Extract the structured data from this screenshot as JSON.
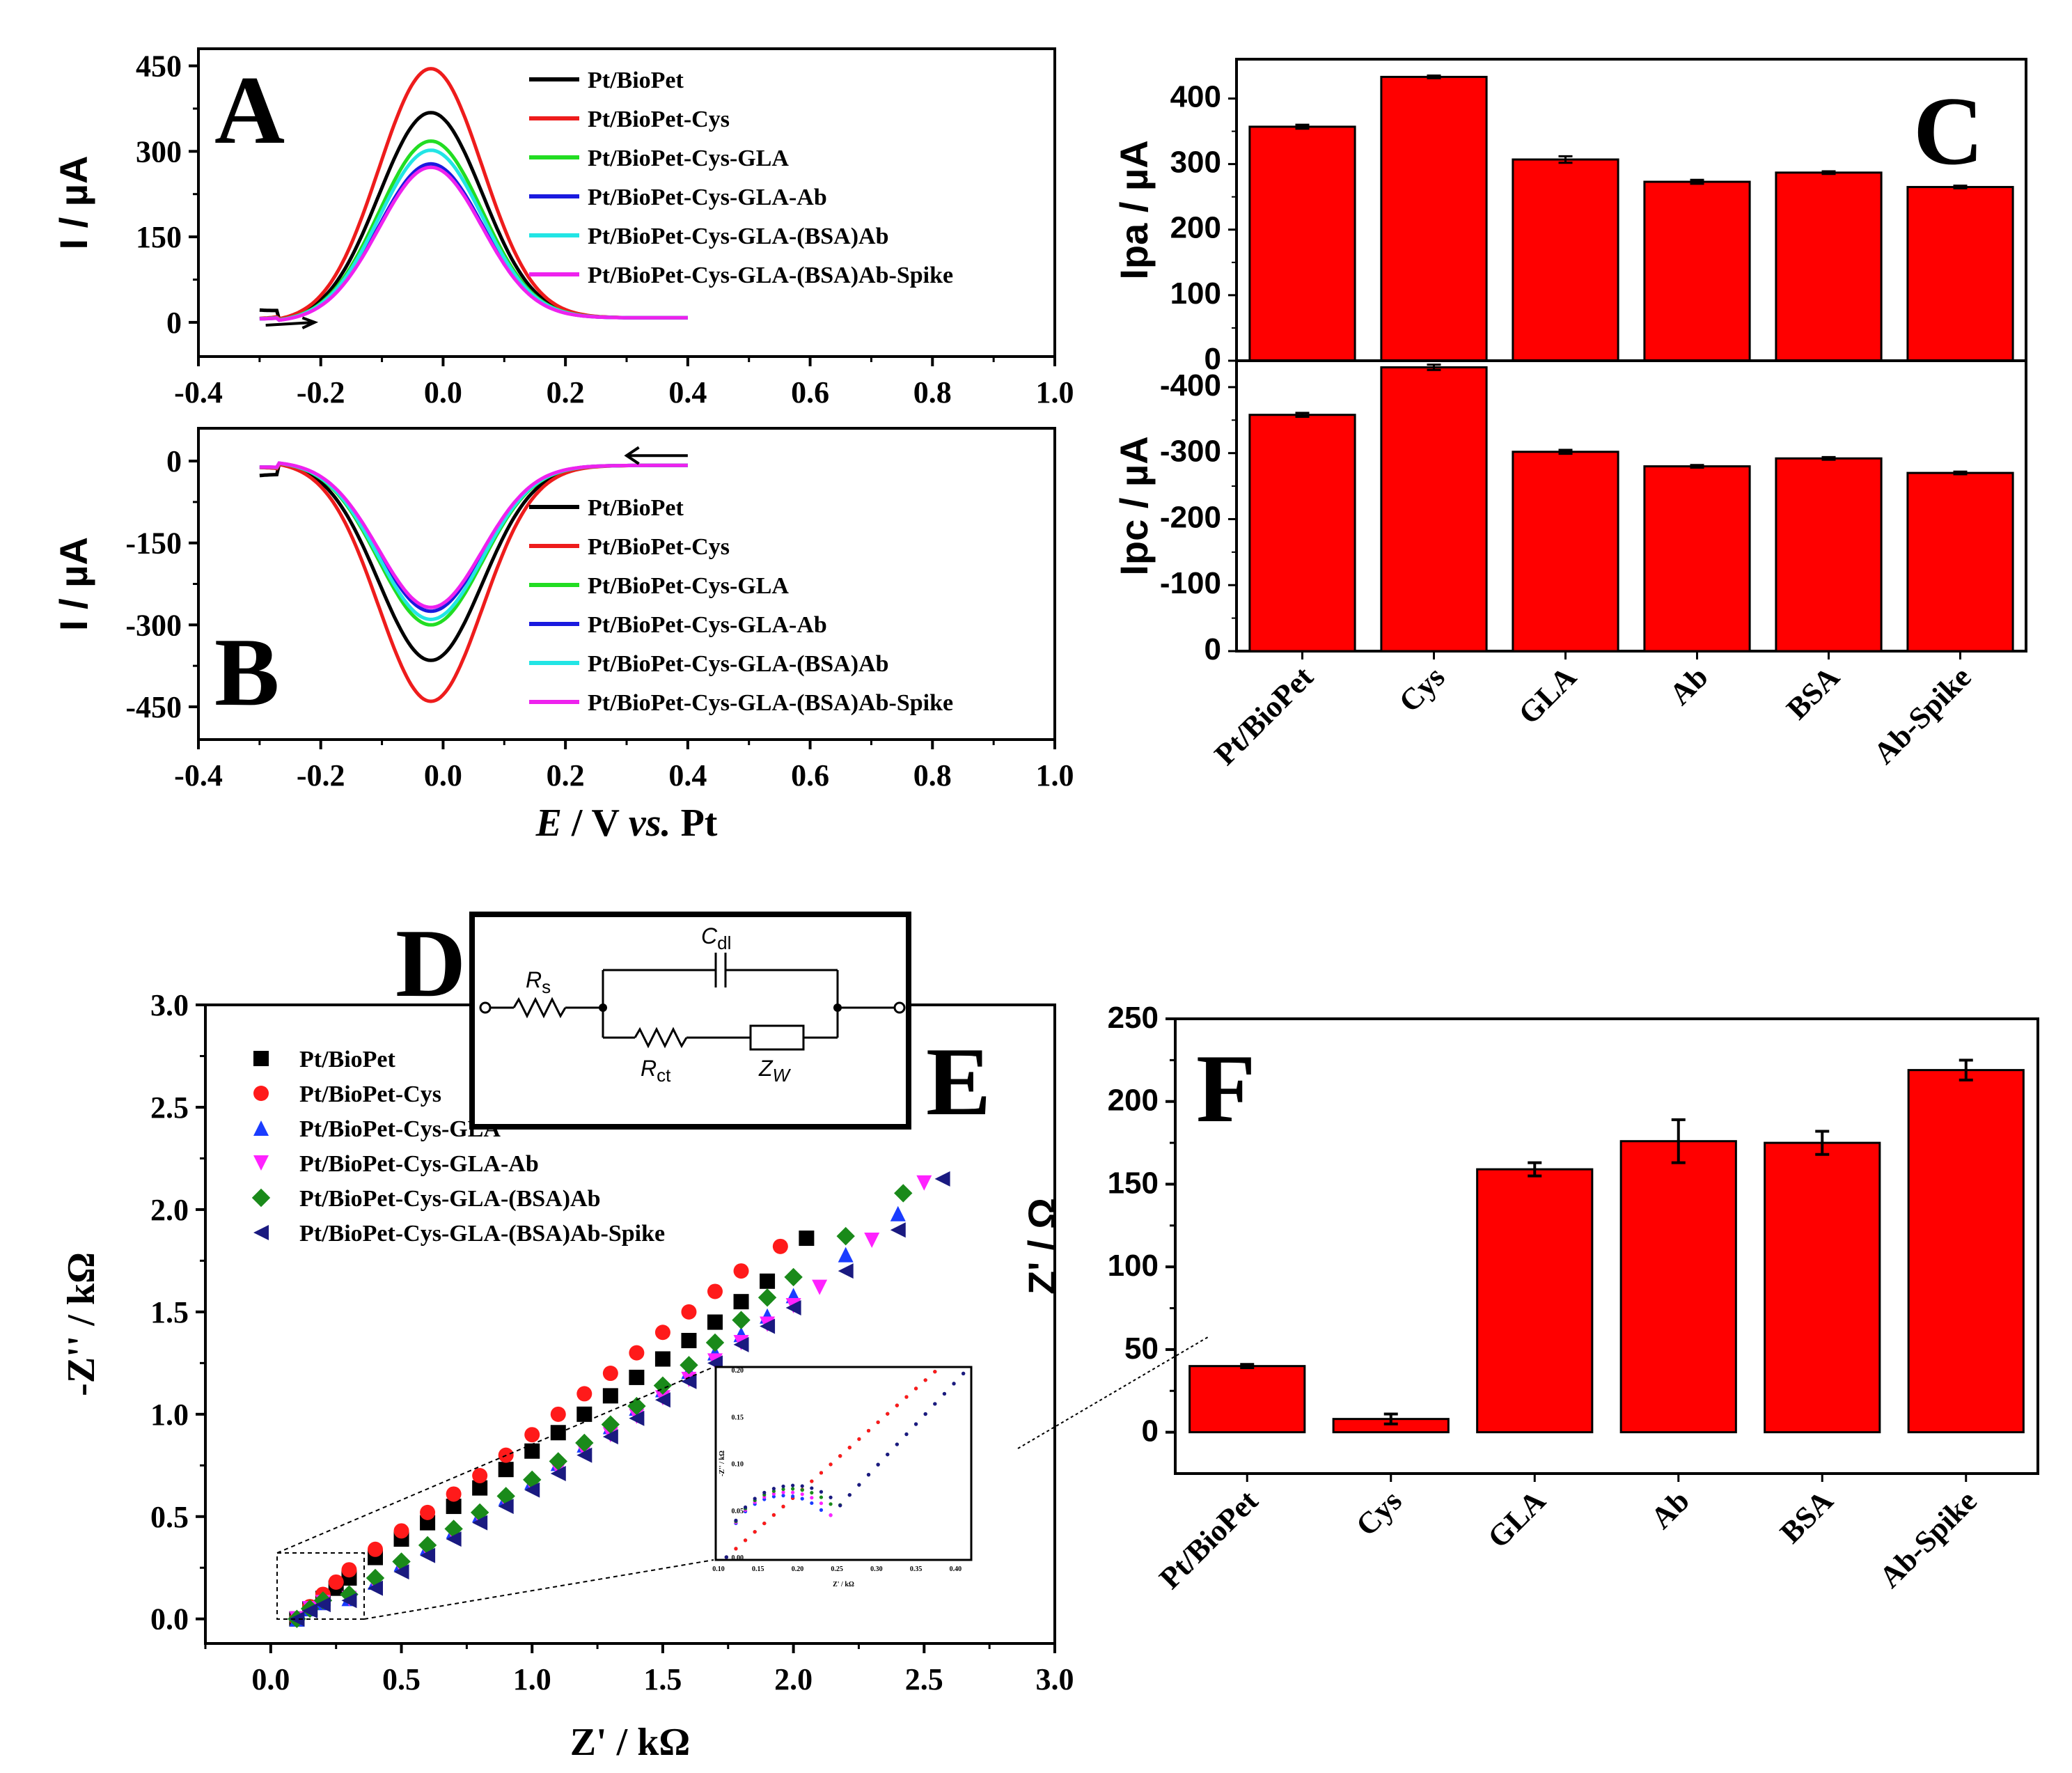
{
  "colors": {
    "black": "#000000",
    "red": "#ee1c1c",
    "green": "#22dd22",
    "blue": "#1a1adf",
    "cyan": "#22e5e5",
    "magenta": "#ee22ee",
    "bar": "#ff0000",
    "eis_black": "#000000",
    "eis_red": "#ff1a1a",
    "eis_blue": "#1a3cff",
    "eis_magenta": "#ff22ff",
    "eis_green": "#1a8a1a",
    "eis_navy": "#1a1a80"
  },
  "chart_data": [
    {
      "id": "A",
      "panel_label": "A",
      "type": "line",
      "title": "",
      "xlabel": "",
      "ylabel": "I / µA",
      "xlim": [
        -0.4,
        1.0
      ],
      "ylim": [
        -60,
        480
      ],
      "xticks": [
        "-0.4",
        "-0.2",
        "0.0",
        "0.2",
        "0.4",
        "0.6",
        "0.8",
        "1.0"
      ],
      "yticks": [
        "0",
        "150",
        "300",
        "450"
      ],
      "ytick_values": [
        0,
        150,
        300,
        450
      ],
      "legend": "top-right",
      "series": [
        {
          "name": "Pt/BioPet",
          "color": "black",
          "peak": 368
        },
        {
          "name": "Pt/BioPet-Cys",
          "color": "red",
          "peak": 445
        },
        {
          "name": "Pt/BioPet-Cys-GLA",
          "color": "green",
          "peak": 318
        },
        {
          "name": "Pt/BioPet-Cys-GLA-Ab",
          "color": "blue",
          "peak": 278
        },
        {
          "name": "Pt/BioPet-Cys-GLA-(BSA)Ab",
          "color": "cyan",
          "peak": 302
        },
        {
          "name": "Pt/BioPet-Cys-GLA-(BSA)Ab-Spike",
          "color": "magenta",
          "peak": 272
        }
      ],
      "peak_x": -0.02,
      "x_start": -0.3,
      "x_end": 0.4,
      "arrow": "forward"
    },
    {
      "id": "B",
      "panel_label": "B",
      "type": "line",
      "title": "",
      "xlabel_parts": {
        "e": "E",
        "mid": " / V ",
        "vs": "vs.",
        "end": " Pt"
      },
      "ylabel": "I / µA",
      "xlim": [
        -0.4,
        1.0
      ],
      "ylim": [
        -510,
        60
      ],
      "xticks": [
        "-0.4",
        "-0.2",
        "0.0",
        "0.2",
        "0.4",
        "0.6",
        "0.8",
        "1.0"
      ],
      "yticks": [
        "0",
        "-150",
        "-300",
        "-450"
      ],
      "ytick_values": [
        0,
        -150,
        -300,
        -450
      ],
      "legend": "bottom-right",
      "series": [
        {
          "name": "Pt/BioPet",
          "color": "black",
          "peak": -365
        },
        {
          "name": "Pt/BioPet-Cys",
          "color": "red",
          "peak": -440
        },
        {
          "name": "Pt/BioPet-Cys-GLA",
          "color": "green",
          "peak": -300
        },
        {
          "name": "Pt/BioPet-Cys-GLA-Ab",
          "color": "blue",
          "peak": -275
        },
        {
          "name": "Pt/BioPet-Cys-GLA-(BSA)Ab",
          "color": "cyan",
          "peak": -290
        },
        {
          "name": "Pt/BioPet-Cys-GLA-(BSA)Ab-Spike",
          "color": "magenta",
          "peak": -268
        }
      ],
      "peak_x": -0.02,
      "x_start": -0.3,
      "x_end": 0.4,
      "arrow": "reverse"
    },
    {
      "id": "C",
      "panel_label": "C",
      "type": "bar",
      "categories": [
        "Pt/BioPet",
        "Cys",
        "GLA",
        "Ab",
        "BSA",
        "Ab-Spike"
      ],
      "subplots": [
        {
          "ylabel": "Ipa / µA",
          "values": [
            357,
            433,
            307,
            273,
            287,
            265
          ],
          "errors": [
            3,
            2,
            5,
            3,
            2,
            2
          ],
          "ylim": [
            0,
            460
          ],
          "yticks": [
            "0",
            "100",
            "200",
            "300",
            "400"
          ],
          "ytick_values": [
            0,
            100,
            200,
            300,
            400
          ]
        },
        {
          "ylabel": "Ipc / µA",
          "values": [
            -358,
            -430,
            -302,
            -280,
            -292,
            -270
          ],
          "errors": [
            3,
            4,
            3,
            2,
            2,
            2
          ],
          "ylim": [
            0,
            -440
          ],
          "yticks": [
            "0",
            "-100",
            "-200",
            "-300",
            "-400"
          ],
          "ytick_values": [
            0,
            -100,
            -200,
            -300,
            -400
          ]
        }
      ]
    },
    {
      "id": "E",
      "panel_label": "E",
      "type": "scatter",
      "xlabel": "Z' / kΩ",
      "ylabel": "-Z'' / kΩ",
      "xlim": [
        -0.25,
        3.0
      ],
      "ylim": [
        -0.12,
        3.0
      ],
      "xticks": [
        "0.0",
        "0.5",
        "1.0",
        "1.5",
        "2.0",
        "2.5",
        "3.0"
      ],
      "xtick_values": [
        0,
        0.5,
        1.0,
        1.5,
        2.0,
        2.5,
        3.0
      ],
      "yticks": [
        "0.0",
        "0.5",
        "1.0",
        "1.5",
        "2.0",
        "2.5",
        "3.0"
      ],
      "ytick_values": [
        0,
        0.5,
        1.0,
        1.5,
        2.0,
        2.5,
        3.0
      ],
      "legend": "top-left",
      "series": [
        {
          "name": "Pt/BioPet",
          "marker": "square",
          "color": "eis_black",
          "x": [
            0.1,
            0.15,
            0.2,
            0.25,
            0.3,
            0.4,
            0.5,
            0.6,
            0.7,
            0.8,
            0.9,
            1.0,
            1.1,
            1.2,
            1.3,
            1.4,
            1.5,
            1.6,
            1.7,
            1.8,
            1.9,
            2.05
          ],
          "y": [
            0.0,
            0.05,
            0.1,
            0.15,
            0.2,
            0.3,
            0.39,
            0.47,
            0.55,
            0.64,
            0.73,
            0.82,
            0.91,
            1.0,
            1.09,
            1.18,
            1.27,
            1.36,
            1.45,
            1.55,
            1.65,
            1.86
          ]
        },
        {
          "name": "Pt/BioPet-Cys",
          "marker": "circle",
          "color": "eis_red",
          "x": [
            0.1,
            0.15,
            0.2,
            0.25,
            0.3,
            0.4,
            0.5,
            0.6,
            0.7,
            0.8,
            0.9,
            1.0,
            1.1,
            1.2,
            1.3,
            1.4,
            1.5,
            1.6,
            1.7,
            1.8,
            1.95
          ],
          "y": [
            0.0,
            0.06,
            0.12,
            0.18,
            0.24,
            0.34,
            0.43,
            0.52,
            0.61,
            0.7,
            0.8,
            0.9,
            1.0,
            1.1,
            1.2,
            1.3,
            1.4,
            1.5,
            1.6,
            1.7,
            1.82
          ]
        },
        {
          "name": "Pt/BioPet-Cys-GLA",
          "marker": "triangle-up",
          "color": "eis_blue",
          "x": [
            0.1,
            0.15,
            0.2,
            0.3,
            0.4,
            0.5,
            0.6,
            0.7,
            0.8,
            0.9,
            1.0,
            1.1,
            1.2,
            1.3,
            1.4,
            1.5,
            1.6,
            1.7,
            1.8,
            1.9,
            2.0,
            2.2,
            2.4
          ],
          "y": [
            0.0,
            0.05,
            0.08,
            0.1,
            0.18,
            0.27,
            0.35,
            0.43,
            0.51,
            0.59,
            0.67,
            0.76,
            0.85,
            0.94,
            1.03,
            1.12,
            1.21,
            1.3,
            1.39,
            1.48,
            1.58,
            1.78,
            1.98
          ]
        },
        {
          "name": "Pt/BioPet-Cys-GLA-Ab",
          "marker": "triangle-down",
          "color": "eis_magenta",
          "x": [
            0.1,
            0.15,
            0.2,
            0.3,
            0.4,
            0.5,
            0.6,
            0.7,
            0.8,
            0.9,
            1.0,
            1.1,
            1.2,
            1.3,
            1.4,
            1.5,
            1.6,
            1.7,
            1.8,
            1.9,
            2.0,
            2.1,
            2.3,
            2.5
          ],
          "y": [
            0.0,
            0.05,
            0.08,
            0.1,
            0.17,
            0.25,
            0.33,
            0.41,
            0.49,
            0.57,
            0.65,
            0.73,
            0.82,
            0.9,
            0.99,
            1.08,
            1.17,
            1.26,
            1.35,
            1.44,
            1.53,
            1.62,
            1.85,
            2.13
          ]
        },
        {
          "name": "Pt/BioPet-Cys-GLA-(BSA)Ab",
          "marker": "diamond",
          "color": "eis_green",
          "x": [
            0.1,
            0.15,
            0.2,
            0.3,
            0.4,
            0.5,
            0.6,
            0.7,
            0.8,
            0.9,
            1.0,
            1.1,
            1.2,
            1.3,
            1.4,
            1.5,
            1.6,
            1.7,
            1.8,
            1.9,
            2.0,
            2.2,
            2.42
          ],
          "y": [
            0.0,
            0.05,
            0.09,
            0.12,
            0.2,
            0.28,
            0.36,
            0.44,
            0.52,
            0.6,
            0.68,
            0.77,
            0.86,
            0.95,
            1.04,
            1.14,
            1.24,
            1.35,
            1.46,
            1.57,
            1.67,
            1.87,
            2.08
          ]
        },
        {
          "name": "Pt/BioPet-Cys-GLA-(BSA)Ab-Spike",
          "marker": "triangle-left",
          "color": "eis_navy",
          "x": [
            0.1,
            0.15,
            0.2,
            0.3,
            0.4,
            0.5,
            0.6,
            0.7,
            0.8,
            0.9,
            1.0,
            1.1,
            1.2,
            1.3,
            1.4,
            1.5,
            1.6,
            1.7,
            1.8,
            1.9,
            2.0,
            2.2,
            2.4,
            2.57
          ],
          "y": [
            0.0,
            0.04,
            0.07,
            0.09,
            0.15,
            0.23,
            0.31,
            0.39,
            0.47,
            0.55,
            0.63,
            0.71,
            0.8,
            0.89,
            0.98,
            1.07,
            1.16,
            1.25,
            1.34,
            1.43,
            1.52,
            1.7,
            1.9,
            2.15
          ]
        }
      ],
      "inset": {
        "xlabel": "Z' / kΩ",
        "ylabel": "-Z'' / kΩ",
        "xticks": [
          "0.10",
          "0.15",
          "0.20",
          "0.25",
          "0.30",
          "0.35",
          "0.40"
        ],
        "yticks": [
          "0.00",
          "0.05",
          "0.10",
          "0.15",
          "0.20"
        ]
      }
    },
    {
      "id": "F",
      "panel_label": "F",
      "type": "bar",
      "ylabel": "Z' / Ω",
      "categories": [
        "Pt/BioPet",
        "Cys",
        "GLA",
        "Ab",
        "BSA",
        "Ab-Spike"
      ],
      "values": [
        40,
        8,
        159,
        176,
        175,
        219
      ],
      "errors": [
        1,
        3,
        4,
        13,
        7,
        6
      ],
      "ylim": [
        -25,
        250
      ],
      "yticks": [
        "0",
        "50",
        "100",
        "150",
        "200",
        "250"
      ],
      "ytick_values": [
        0,
        50,
        100,
        150,
        200,
        250
      ]
    }
  ],
  "panel_d": {
    "label": "D",
    "rs": "R",
    "rs_sub": "s",
    "cdl": "C",
    "cdl_sub": "dl",
    "rct": "R",
    "rct_sub": "ct",
    "zw": "Z",
    "zw_sub": "W"
  }
}
